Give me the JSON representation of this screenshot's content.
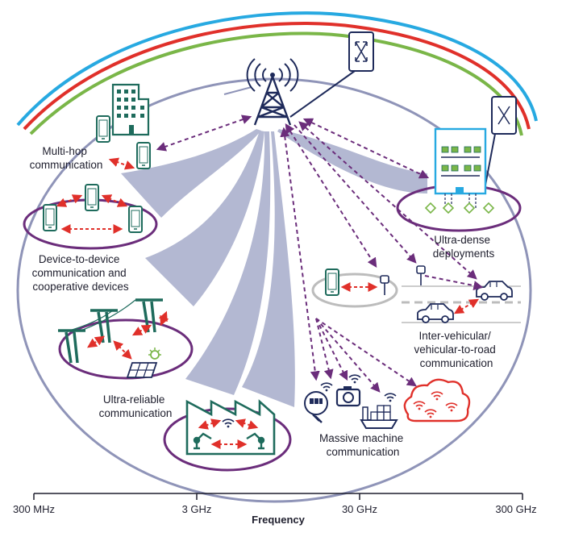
{
  "labels": {
    "multihop": [
      "Multi-hop",
      "communication"
    ],
    "d2d": [
      "Device-to-device",
      "communication and",
      "cooperative devices"
    ],
    "ultra_reliable": [
      "Ultra-reliable",
      "communication"
    ],
    "ultra_dense": [
      "Ultra-dense",
      "deployments"
    ],
    "vehicular": [
      "Inter-vehicular/",
      "vehicular-to-road",
      "communication"
    ],
    "massive": [
      "Massive machine",
      "communication"
    ]
  },
  "axis": {
    "title": "Frequency",
    "ticks": [
      "300 MHz",
      "3 GHz",
      "30 GHz",
      "300 GHz"
    ]
  },
  "colors": {
    "navy": "#1e2a5a",
    "purple": "#6b2d7b",
    "red": "#e0302a",
    "beam": "#b3b8d2",
    "arc_blue": "#27a9e1",
    "arc_red": "#e0302a",
    "arc_green": "#7ab648",
    "teal": "#1e6b5c",
    "ellipse": "#8f94b8",
    "gray": "#bcbcbc"
  },
  "icons": [
    "tower-icon",
    "building-icon",
    "phone-icon",
    "factory-icon",
    "power-pylon-icon",
    "solar-panel-icon",
    "car-icon",
    "sensor-icon",
    "camera-icon",
    "ship-icon",
    "cloud-icon",
    "relay-box-icon",
    "smart-meter-icon",
    "robot-arm-icon"
  ]
}
